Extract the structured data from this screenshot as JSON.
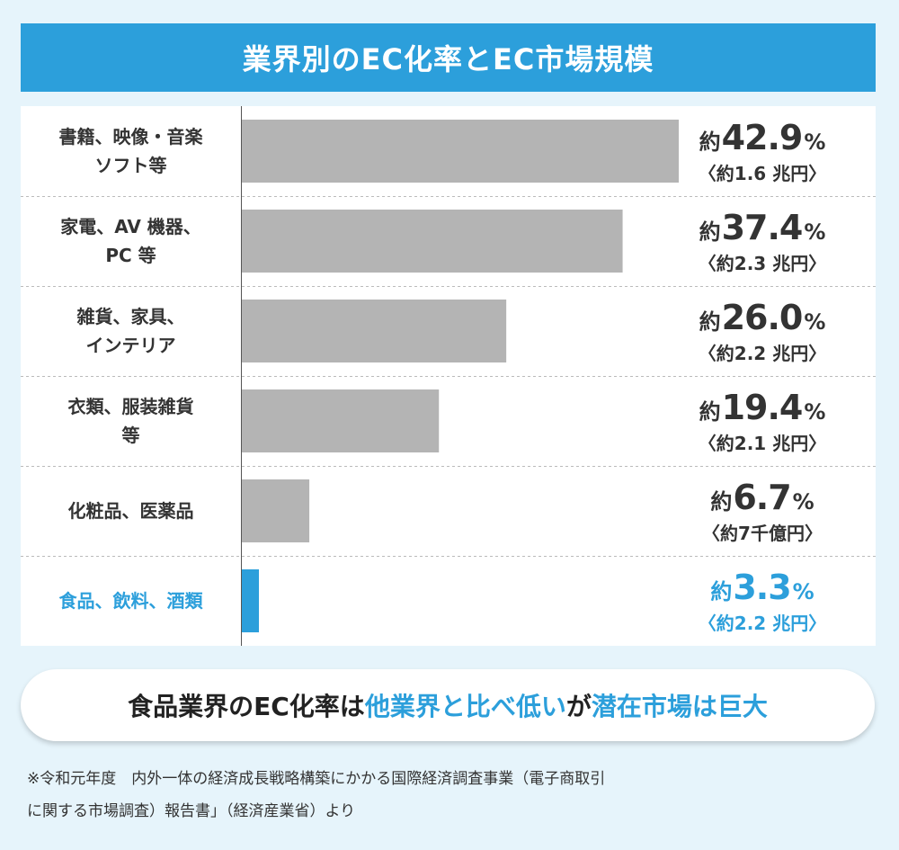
{
  "header": {
    "title": "業界別のEC化率とEC市場規模"
  },
  "chart_data": {
    "type": "bar",
    "orientation": "horizontal",
    "title": "業界別のEC化率とEC市場規模",
    "xlim": [
      0,
      42.9
    ],
    "categories": [
      "書籍、映像・音楽\nソフト等",
      "家電、AV 機器、\nPC 等",
      "雑貨、家具、\nインテリア",
      "衣類、服装雑貨\n等",
      "化粧品、医薬品",
      "食品、飲料、酒類"
    ],
    "values": [
      42.9,
      37.4,
      26.0,
      19.4,
      6.7,
      3.3
    ],
    "value_labels": [
      "42.9",
      "37.4",
      "26.0",
      "19.4",
      "6.7",
      "3.3"
    ],
    "value_prefix": "約",
    "value_unit": "%",
    "market_labels": [
      "〈約1.6 兆円〉",
      "〈約2.3 兆円〉",
      "〈約2.2 兆円〉",
      "〈約2.1 兆円〉",
      "〈約7千億円〉",
      "〈約2.2 兆円〉"
    ],
    "highlight_index": 5,
    "colors": {
      "bar": "#b4b4b4",
      "highlight": "#2c9fdb",
      "divider": "#bbbbbb",
      "axis": "#555555"
    }
  },
  "conclusion": {
    "part1": "食品業界のEC化率は",
    "part2": "他業界と比べ低い",
    "part3": "が",
    "part4": "潜在市場は巨大"
  },
  "source": {
    "line1": "※令和元年度　内外一体の経済成長戦略構築にかかる国際経済調査事業（電子商取引",
    "line2": "に関する市場調査）報告書」（経済産業省）より"
  }
}
